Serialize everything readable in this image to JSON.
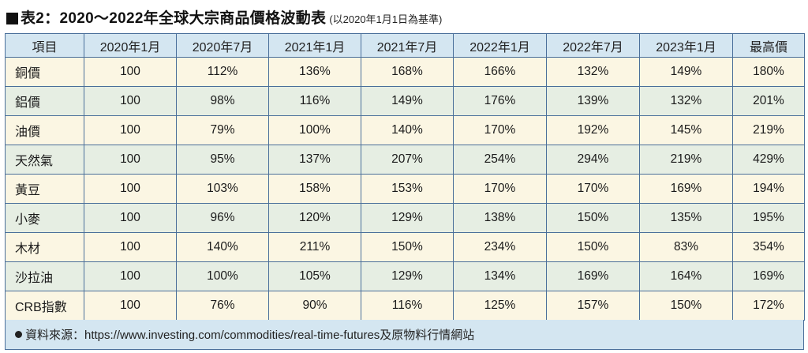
{
  "title": {
    "main": "表2：2020～2022年全球大宗商品價格波動表",
    "sub": "(以2020年1月1日為基準)"
  },
  "table": {
    "headers": [
      "項目",
      "2020年1月",
      "2020年7月",
      "2021年1月",
      "2021年7月",
      "2022年1月",
      "2022年7月",
      "2023年1月",
      "最高價"
    ],
    "rows": [
      [
        "銅價",
        "100",
        "112%",
        "136%",
        "168%",
        "166%",
        "132%",
        "149%",
        "180%"
      ],
      [
        "鋁價",
        "100",
        "98%",
        "116%",
        "149%",
        "176%",
        "139%",
        "132%",
        "201%"
      ],
      [
        "油價",
        "100",
        "79%",
        "100%",
        "140%",
        "170%",
        "192%",
        "145%",
        "219%"
      ],
      [
        "天然氣",
        "100",
        "95%",
        "137%",
        "207%",
        "254%",
        "294%",
        "219%",
        "429%"
      ],
      [
        "黃豆",
        "100",
        "103%",
        "158%",
        "153%",
        "170%",
        "170%",
        "169%",
        "194%"
      ],
      [
        "小麥",
        "100",
        "96%",
        "120%",
        "129%",
        "138%",
        "150%",
        "135%",
        "195%"
      ],
      [
        "木材",
        "100",
        "140%",
        "211%",
        "150%",
        "234%",
        "150%",
        "83%",
        "354%"
      ],
      [
        "沙拉油",
        "100",
        "100%",
        "105%",
        "129%",
        "134%",
        "169%",
        "164%",
        "169%"
      ],
      [
        "CRB指數",
        "100",
        "76%",
        "90%",
        "116%",
        "125%",
        "157%",
        "150%",
        "172%"
      ]
    ]
  },
  "footer": {
    "text": "資料來源：https://www.investing.com/commodities/real-time-futures及原物料行情網站"
  }
}
